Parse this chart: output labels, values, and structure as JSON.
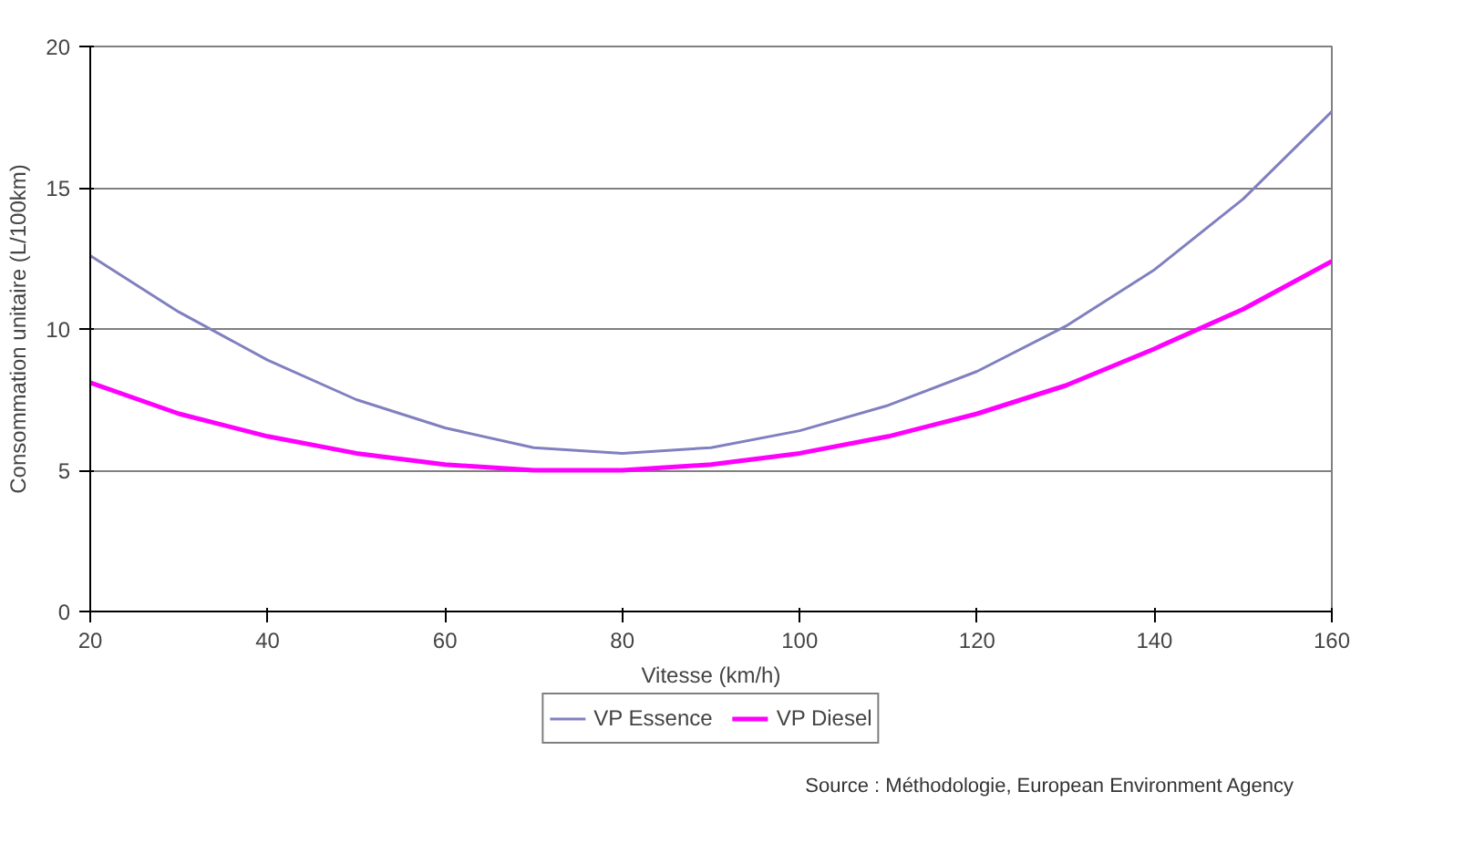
{
  "chart_data": {
    "type": "line",
    "xlabel": "Vitesse (km/h)",
    "ylabel": "Consommation unitaire (L/100km)",
    "x": [
      20,
      30,
      40,
      50,
      60,
      70,
      80,
      90,
      100,
      110,
      120,
      130,
      140,
      150,
      160
    ],
    "series": [
      {
        "name": "VP Essence",
        "color": "#8080c0",
        "values": [
          12.6,
          10.6,
          8.9,
          7.5,
          6.5,
          5.8,
          5.6,
          5.8,
          6.4,
          7.3,
          8.5,
          10.1,
          12.1,
          14.6,
          17.7
        ]
      },
      {
        "name": "VP Diesel",
        "color": "#ff00ff",
        "values": [
          8.1,
          7.0,
          6.2,
          5.6,
          5.2,
          5.0,
          5.0,
          5.2,
          5.6,
          6.2,
          7.0,
          8.0,
          9.3,
          10.7,
          12.4
        ]
      }
    ],
    "xlim": [
      20,
      160
    ],
    "xticks": [
      20,
      40,
      60,
      80,
      100,
      120,
      140,
      160
    ],
    "ylim": [
      0,
      20
    ],
    "yticks": [
      0,
      5,
      10,
      15,
      20
    ],
    "grid": "y",
    "legend": "bottom",
    "marker": "none",
    "line_style": "solid",
    "annotations": [
      "Source : Méthodologie, European Environment Agency"
    ]
  }
}
